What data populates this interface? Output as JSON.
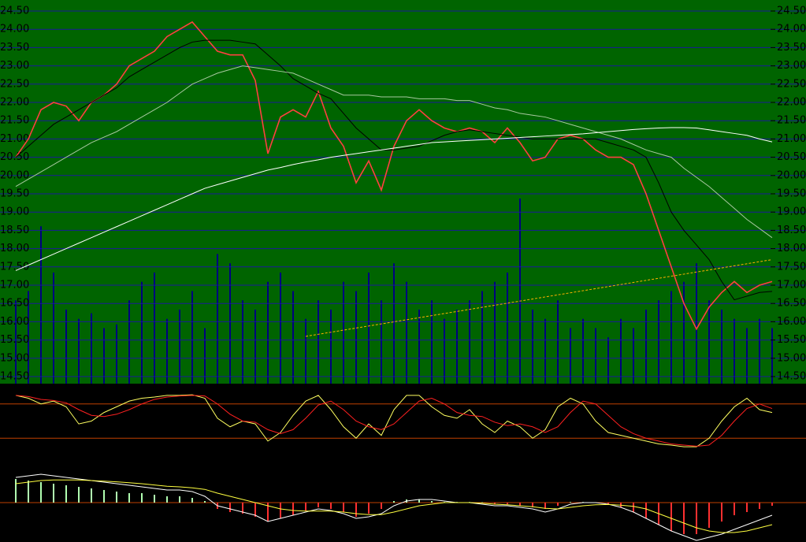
{
  "chart_data": [
    {
      "type": "line",
      "ylim": [
        14.5,
        24.5
      ],
      "yticks": [
        {
          "value": 14.5,
          "label": "14.50"
        },
        {
          "value": 15,
          "label": "15.00"
        },
        {
          "value": 15.5,
          "label": "15.50"
        },
        {
          "value": 16,
          "label": "16.00"
        },
        {
          "value": 16.5,
          "label": "16.50"
        },
        {
          "value": 17,
          "label": "17.00"
        },
        {
          "value": 17.5,
          "label": "17.50"
        },
        {
          "value": 18,
          "label": "18.00"
        },
        {
          "value": 18.5,
          "label": "18.50"
        },
        {
          "value": 19,
          "label": "19.00"
        },
        {
          "value": 19.5,
          "label": "19.50"
        },
        {
          "value": 20,
          "label": "20.00"
        },
        {
          "value": 20.5,
          "label": "20.50"
        },
        {
          "value": 21,
          "label": "21.00"
        },
        {
          "value": 21.5,
          "label": "21.50"
        },
        {
          "value": 22,
          "label": "22.00"
        },
        {
          "value": 22.5,
          "label": "22.50"
        },
        {
          "value": 23,
          "label": "23.00"
        },
        {
          "value": 23.5,
          "label": "23.50"
        },
        {
          "value": 24,
          "label": "24.00"
        },
        {
          "value": 24.5,
          "label": "24.50"
        }
      ],
      "grid": true,
      "series": [
        {
          "color": "#ff4040",
          "values": [
            20.5,
            21.0,
            21.8,
            22.0,
            21.9,
            21.5,
            22.0,
            22.2,
            22.5,
            23.0,
            23.2,
            23.4,
            23.8,
            24.0,
            24.2,
            23.8,
            23.4,
            23.3,
            23.3,
            22.6,
            20.6,
            21.6,
            21.8,
            21.6,
            22.3,
            21.3,
            20.8,
            19.8,
            20.4,
            19.6,
            20.8,
            21.5,
            21.8,
            21.5,
            21.3,
            21.2,
            21.3,
            21.2,
            20.9,
            21.3,
            20.9,
            20.4,
            20.5,
            21.0,
            21.1,
            21.0,
            20.7,
            20.5,
            20.5,
            20.3,
            19.5,
            18.5,
            17.5,
            16.5,
            15.8,
            16.4,
            16.8,
            17.1,
            16.8,
            17.0,
            17.1
          ]
        },
        {
          "color": "#000000",
          "values": [
            20.5,
            20.8,
            21.1,
            21.4,
            21.6,
            21.8,
            22.0,
            22.2,
            22.4,
            22.7,
            22.9,
            23.1,
            23.3,
            23.5,
            23.65,
            23.7,
            23.7,
            23.7,
            23.65,
            23.6,
            23.3,
            23.0,
            22.65,
            22.45,
            22.25,
            22.1,
            21.7,
            21.3,
            21.0,
            20.7,
            20.7,
            20.75,
            20.8,
            20.95,
            21.1,
            21.2,
            21.25,
            21.2,
            21.15,
            21.1,
            21.05,
            21.0,
            21.0,
            21.0,
            21.0,
            21.0,
            21.0,
            20.9,
            20.8,
            20.7,
            20.5,
            19.8,
            19.0,
            18.5,
            18.1,
            17.7,
            17.1,
            16.6,
            16.7,
            16.8,
            16.83
          ]
        },
        {
          "color": "#a8c8a0",
          "values": [
            19.7,
            19.9,
            20.1,
            20.3,
            20.5,
            20.7,
            20.9,
            21.05,
            21.2,
            21.4,
            21.6,
            21.8,
            22.0,
            22.25,
            22.5,
            22.65,
            22.8,
            22.9,
            23.0,
            22.95,
            22.9,
            22.85,
            22.8,
            22.65,
            22.5,
            22.35,
            22.2,
            22.2,
            22.2,
            22.15,
            22.15,
            22.15,
            22.1,
            22.1,
            22.1,
            22.05,
            22.05,
            21.95,
            21.85,
            21.8,
            21.7,
            21.65,
            21.6,
            21.5,
            21.4,
            21.3,
            21.2,
            21.1,
            21.0,
            20.85,
            20.7,
            20.6,
            20.5,
            20.2,
            19.95,
            19.7,
            19.4,
            19.1,
            18.8,
            18.55,
            18.3
          ]
        },
        {
          "color": "#ffffff",
          "values": [
            17.4,
            17.55,
            17.7,
            17.85,
            18.0,
            18.15,
            18.3,
            18.45,
            18.6,
            18.75,
            18.9,
            19.05,
            19.2,
            19.35,
            19.5,
            19.65,
            19.75,
            19.85,
            19.95,
            20.05,
            20.15,
            20.22,
            20.3,
            20.37,
            20.43,
            20.5,
            20.55,
            20.6,
            20.65,
            20.7,
            20.75,
            20.8,
            20.85,
            20.9,
            20.92,
            20.94,
            20.96,
            20.98,
            21.0,
            21.02,
            21.04,
            21.06,
            21.08,
            21.1,
            21.12,
            21.14,
            21.17,
            21.2,
            21.23,
            21.26,
            21.28,
            21.3,
            21.31,
            21.31,
            21.3,
            21.25,
            21.2,
            21.15,
            21.1,
            21.0,
            20.92
          ]
        }
      ],
      "trendline": {
        "color": "#ffb000",
        "x": [
          23,
          60
        ],
        "values": [
          15.6,
          17.7
        ]
      }
    },
    {
      "type": "bar",
      "color": "#000080",
      "ylim": [
        0,
        100
      ],
      "values": [
        45,
        50,
        85,
        60,
        40,
        35,
        38,
        30,
        32,
        45,
        55,
        60,
        35,
        40,
        50,
        30,
        70,
        65,
        45,
        40,
        55,
        60,
        50,
        35,
        45,
        40,
        55,
        50,
        60,
        45,
        65,
        55,
        40,
        45,
        35,
        40,
        45,
        50,
        55,
        60,
        100,
        40,
        35,
        45,
        30,
        35,
        30,
        25,
        35,
        30,
        40,
        45,
        50,
        55,
        65,
        45,
        40,
        35,
        30,
        35,
        30
      ]
    },
    {
      "type": "line",
      "ylim": [
        -10,
        110
      ],
      "ref_lines": [
        80,
        20
      ],
      "ref_color": "#c04000",
      "series": [
        {
          "color": "#ffff60",
          "values": [
            95,
            90,
            80,
            85,
            75,
            45,
            50,
            65,
            75,
            85,
            90,
            92,
            95,
            95,
            96,
            90,
            55,
            40,
            50,
            45,
            15,
            30,
            60,
            85,
            95,
            70,
            40,
            20,
            45,
            25,
            70,
            95,
            95,
            75,
            60,
            55,
            70,
            45,
            30,
            50,
            40,
            20,
            35,
            75,
            90,
            80,
            50,
            30,
            25,
            20,
            15,
            10,
            8,
            5,
            5,
            20,
            50,
            75,
            90,
            70,
            65
          ]
        },
        {
          "color": "#ff2020",
          "values": [
            95,
            93,
            88,
            86,
            82,
            70,
            60,
            58,
            62,
            70,
            80,
            88,
            92,
            94,
            95,
            94,
            80,
            62,
            50,
            48,
            35,
            28,
            35,
            55,
            78,
            85,
            70,
            50,
            40,
            35,
            45,
            65,
            85,
            90,
            80,
            65,
            60,
            58,
            48,
            42,
            45,
            40,
            30,
            40,
            65,
            85,
            80,
            60,
            40,
            28,
            20,
            15,
            10,
            8,
            6,
            8,
            25,
            50,
            72,
            80,
            72
          ]
        }
      ]
    },
    {
      "type": "macd",
      "ylim": [
        -1.25,
        1
      ],
      "colors": [
        "#b0ffb0",
        "#ff3030"
      ],
      "zero_color": "#c04000",
      "values": [
        0.75,
        0.7,
        0.65,
        0.6,
        0.55,
        0.5,
        0.45,
        0.4,
        0.35,
        0.3,
        0.3,
        0.25,
        0.2,
        0.2,
        0.15,
        0.05,
        -0.2,
        -0.3,
        -0.35,
        -0.45,
        -0.6,
        -0.5,
        -0.4,
        -0.25,
        -0.15,
        -0.2,
        -0.3,
        -0.45,
        -0.35,
        -0.2,
        0.05,
        0.1,
        0.1,
        0.05,
        0.02,
        0.02,
        0.02,
        0.01,
        -0.05,
        -0.05,
        -0.1,
        -0.15,
        -0.2,
        -0.1,
        0.02,
        0.02,
        0.01,
        -0.05,
        -0.15,
        -0.3,
        -0.5,
        -0.7,
        -0.9,
        -1.0,
        -1.0,
        -0.8,
        -0.6,
        -0.4,
        -0.3,
        -0.2,
        -0.1
      ],
      "series": [
        {
          "color": "#ffffff",
          "values": [
            0.8,
            0.85,
            0.9,
            0.85,
            0.8,
            0.75,
            0.7,
            0.65,
            0.6,
            0.55,
            0.5,
            0.45,
            0.4,
            0.4,
            0.35,
            0.2,
            -0.1,
            -0.2,
            -0.3,
            -0.4,
            -0.6,
            -0.5,
            -0.4,
            -0.3,
            -0.2,
            -0.25,
            -0.35,
            -0.5,
            -0.45,
            -0.35,
            -0.1,
            0.05,
            0.1,
            0.1,
            0.05,
            0.0,
            0.0,
            -0.05,
            -0.1,
            -0.1,
            -0.15,
            -0.2,
            -0.3,
            -0.2,
            -0.05,
            0.0,
            0.0,
            -0.05,
            -0.15,
            -0.3,
            -0.5,
            -0.7,
            -0.9,
            -1.05,
            -1.2,
            -1.1,
            -1.0,
            -0.85,
            -0.7,
            -0.55,
            -0.4
          ]
        },
        {
          "color": "#ffff40",
          "values": [
            0.6,
            0.65,
            0.7,
            0.72,
            0.72,
            0.72,
            0.7,
            0.68,
            0.66,
            0.63,
            0.6,
            0.56,
            0.52,
            0.5,
            0.47,
            0.42,
            0.3,
            0.2,
            0.1,
            0.0,
            -0.1,
            -0.2,
            -0.25,
            -0.27,
            -0.27,
            -0.27,
            -0.3,
            -0.35,
            -0.38,
            -0.38,
            -0.3,
            -0.2,
            -0.1,
            -0.05,
            0.0,
            0.0,
            0.0,
            -0.02,
            -0.05,
            -0.07,
            -0.1,
            -0.13,
            -0.18,
            -0.2,
            -0.15,
            -0.1,
            -0.07,
            -0.06,
            -0.08,
            -0.12,
            -0.2,
            -0.35,
            -0.5,
            -0.65,
            -0.8,
            -0.9,
            -0.95,
            -0.95,
            -0.9,
            -0.8,
            -0.7
          ]
        }
      ]
    }
  ]
}
